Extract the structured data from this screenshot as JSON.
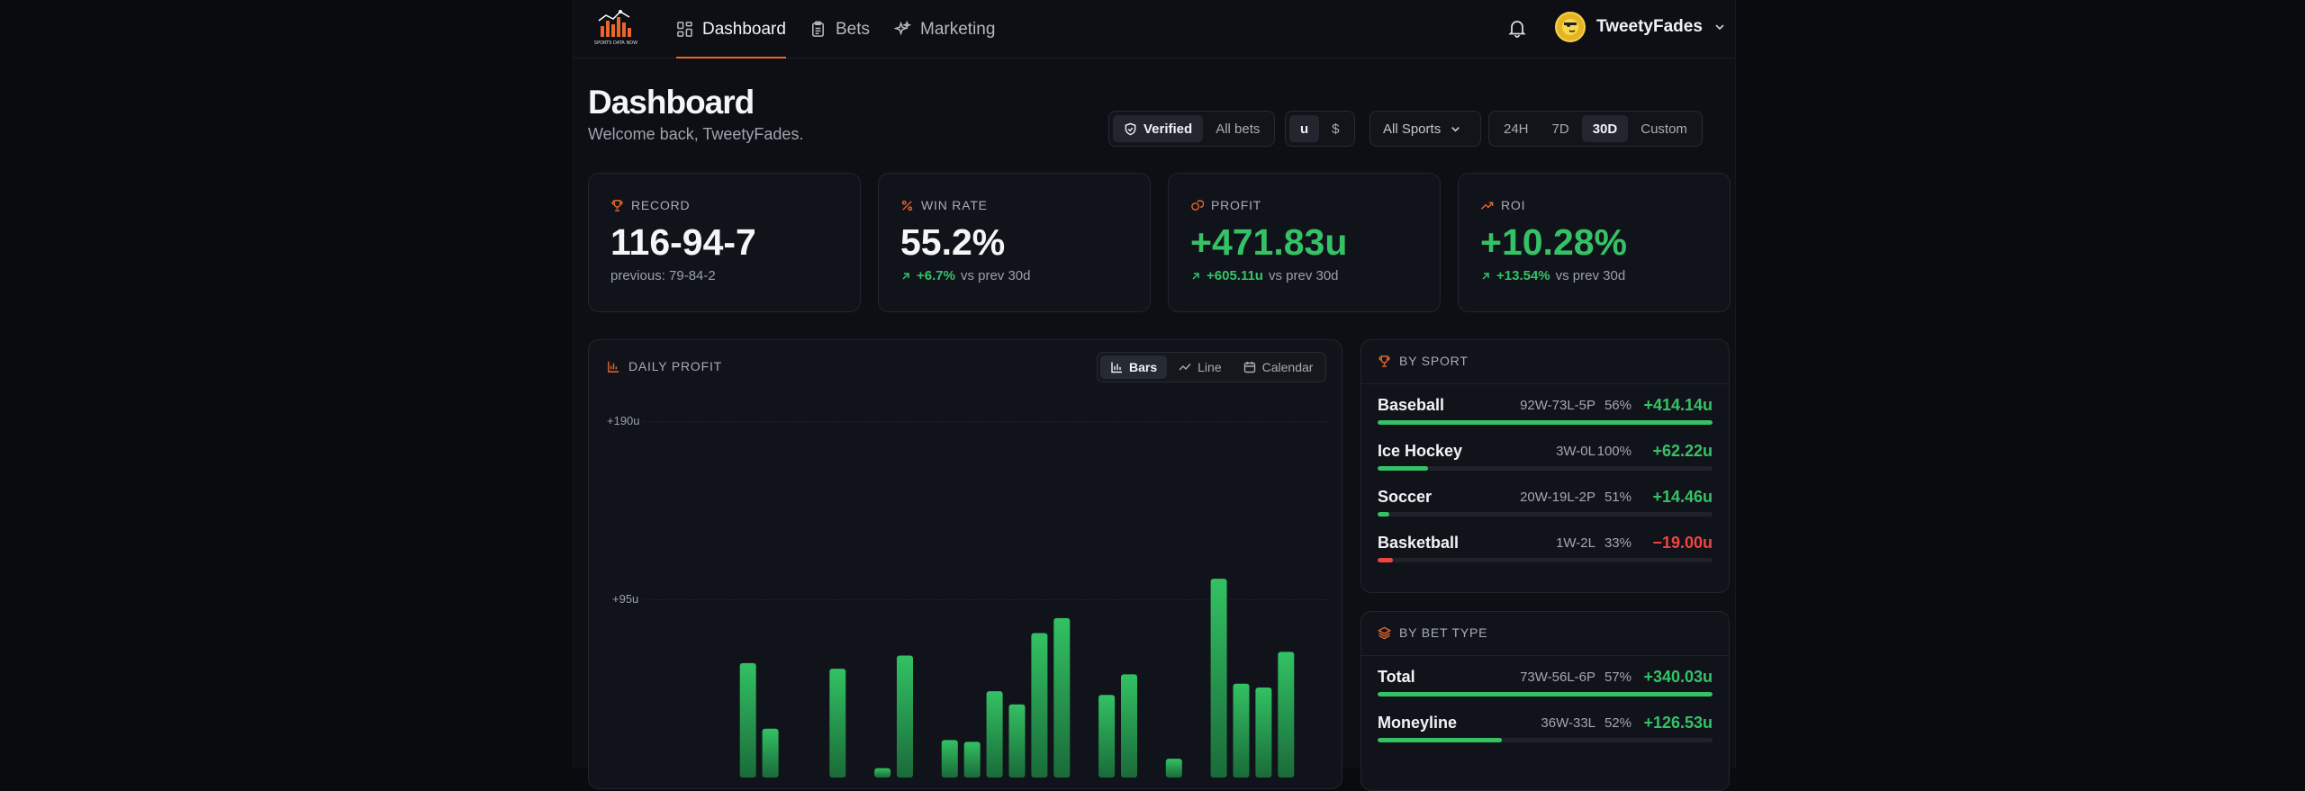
{
  "nav": {
    "logo_text": "SPORTS DATA NOW",
    "items": [
      {
        "label": "Dashboard",
        "icon": "dashboard-grid-icon",
        "active": true
      },
      {
        "label": "Bets",
        "icon": "clipboard-icon",
        "active": false
      },
      {
        "label": "Marketing",
        "icon": "sparkles-icon",
        "active": false
      }
    ],
    "username": "TweetyFades"
  },
  "header": {
    "title": "Dashboard",
    "welcome": "Welcome back, TweetyFades."
  },
  "filters": {
    "verify": [
      {
        "label": "Verified",
        "active": true
      },
      {
        "label": "All bets",
        "active": false
      }
    ],
    "units": [
      {
        "label": "u",
        "active": true
      },
      {
        "label": "$",
        "active": false
      }
    ],
    "sport": "All Sports",
    "range": [
      {
        "label": "24H",
        "active": false
      },
      {
        "label": "7D",
        "active": false
      },
      {
        "label": "30D",
        "active": true
      },
      {
        "label": "Custom",
        "active": false
      }
    ]
  },
  "stats": [
    {
      "label": "RECORD",
      "value": "116-94-7",
      "sub_text": "previous: 79-84-2",
      "change": "",
      "change_suffix": ""
    },
    {
      "label": "WIN RATE",
      "value": "55.2%",
      "sub_text": "",
      "change": "+6.7%",
      "change_suffix": "vs prev 30d"
    },
    {
      "label": "PROFIT",
      "value": "+471.83u",
      "sub_text": "",
      "change": "+605.11u",
      "change_suffix": "vs prev 30d"
    },
    {
      "label": "ROI",
      "value": "+10.28%",
      "sub_text": "",
      "change": "+13.54%",
      "change_suffix": "vs prev 30d"
    }
  ],
  "colors": {
    "accent": "#e8672a",
    "positive": "#35c266",
    "negative": "#ef4444"
  },
  "daily_profit": {
    "title": "DAILY PROFIT",
    "tabs": [
      {
        "label": "Bars",
        "active": true
      },
      {
        "label": "Line",
        "active": false
      },
      {
        "label": "Calendar",
        "active": false
      }
    ],
    "y_ticks": [
      "+190u",
      "+95u"
    ]
  },
  "chart_data": {
    "type": "bar",
    "title": "DAILY PROFIT",
    "ylabel": "",
    "y_ticks": [
      190,
      95
    ],
    "values": [
      null,
      null,
      null,
      61,
      26,
      null,
      null,
      58,
      null,
      5,
      65,
      null,
      20,
      19,
      46,
      39,
      77,
      85,
      null,
      44,
      55,
      null,
      10,
      null,
      106,
      50,
      48,
      67
    ],
    "visible_note": "chart cut off at bottom of viewport; values estimated above baseline"
  },
  "by_sport": {
    "title": "BY SPORT",
    "rows": [
      {
        "name": "Baseball",
        "record": "92W-73L-5P",
        "pct": "56%",
        "profit": "+414.14u",
        "share": 1.0,
        "positive": true
      },
      {
        "name": "Ice Hockey",
        "record": "3W-0L",
        "pct": "100%",
        "profit": "+62.22u",
        "share": 0.15,
        "positive": true
      },
      {
        "name": "Soccer",
        "record": "20W-19L-2P",
        "pct": "51%",
        "profit": "+14.46u",
        "share": 0.035,
        "positive": true
      },
      {
        "name": "Basketball",
        "record": "1W-2L",
        "pct": "33%",
        "profit": "−19.00u",
        "share": 0.046,
        "positive": false
      }
    ]
  },
  "by_bet_type": {
    "title": "BY BET TYPE",
    "rows": [
      {
        "name": "Total",
        "record": "73W-56L-6P",
        "pct": "57%",
        "profit": "+340.03u",
        "share": 1.0,
        "positive": true
      },
      {
        "name": "Moneyline",
        "record": "36W-33L",
        "pct": "52%",
        "profit": "+126.53u",
        "share": 0.37,
        "positive": true
      }
    ]
  }
}
